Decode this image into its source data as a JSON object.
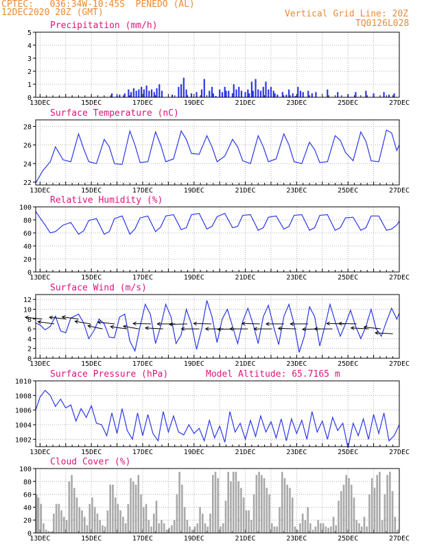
{
  "header": {
    "line1_left": "CPTEC:   036:34W-10:45S  PENEDO (AL)",
    "line2_left": "12DEC2020 20Z (GMT)",
    "line1_right": "Vertical Grid Line: 20Z",
    "line2_right": "TQ0126L028"
  },
  "colors": {
    "header": "#e98a35",
    "title": "#e0137a",
    "line": "#2a36e6",
    "bar": "#a9a9a9",
    "grid": "#999999"
  },
  "chart_data": [
    {
      "type": "bar",
      "title": "Precipitation (mm/h)",
      "ylim": [
        0,
        5
      ],
      "yticks": [
        0,
        1,
        2,
        3,
        4,
        5
      ],
      "xticks": [
        "13DEC",
        "15DEC",
        "17DEC",
        "19DEC",
        "21DEC",
        "23DEC",
        "25DEC",
        "27DEC"
      ],
      "x_range_days": [
        12.83,
        27.0
      ],
      "x": [
        15.8,
        16.0,
        16.1,
        16.3,
        16.45,
        16.55,
        16.65,
        16.75,
        16.85,
        16.95,
        17.05,
        17.15,
        17.25,
        17.35,
        17.45,
        17.55,
        17.65,
        17.75,
        18.15,
        18.4,
        18.5,
        18.6,
        18.7,
        18.9,
        19.1,
        19.3,
        19.4,
        19.6,
        19.7,
        19.75,
        19.85,
        20.0,
        20.1,
        20.2,
        20.25,
        20.35,
        20.5,
        20.55,
        20.65,
        20.75,
        20.85,
        21.0,
        21.1,
        21.15,
        21.25,
        21.3,
        21.4,
        21.5,
        21.6,
        21.7,
        21.8,
        21.9,
        22.0,
        22.1,
        22.15,
        22.25,
        22.45,
        22.6,
        22.7,
        22.85,
        22.95,
        23.05,
        23.15,
        23.25,
        23.45,
        23.6,
        23.75,
        24.2,
        24.6,
        25.0,
        25.3,
        25.7,
        26.0,
        26.4,
        26.6,
        26.8
      ],
      "values": [
        0.3,
        0.1,
        0.2,
        0.3,
        0.6,
        0.4,
        0.7,
        0.5,
        0.6,
        0.8,
        0.6,
        0.9,
        0.5,
        0.6,
        0.4,
        0.7,
        1.0,
        0.5,
        0.2,
        0.8,
        1.0,
        1.5,
        0.6,
        0.3,
        0.4,
        0.6,
        1.4,
        0.5,
        0.8,
        0.3,
        0.1,
        0.6,
        0.4,
        0.8,
        0.5,
        0.5,
        0.3,
        1.0,
        0.6,
        0.8,
        0.5,
        0.4,
        0.6,
        0.3,
        1.2,
        0.5,
        1.4,
        0.6,
        0.5,
        0.8,
        1.2,
        0.6,
        0.8,
        0.5,
        0.3,
        0.2,
        0.4,
        0.2,
        0.6,
        0.3,
        0.1,
        0.8,
        0.5,
        0.4,
        0.5,
        0.3,
        0.4,
        0.6,
        0.4,
        0.2,
        0.4,
        0.5,
        0.3,
        0.4,
        0.2,
        0.3
      ]
    },
    {
      "type": "line",
      "title": "Surface Temperature (nC)",
      "ylim": [
        21.7,
        28.7
      ],
      "yticks": [
        22,
        24,
        26,
        28
      ],
      "xticks": [
        "13DEC",
        "15DEC",
        "17DEC",
        "19DEC",
        "21DEC",
        "23DEC",
        "25DEC",
        "27DEC"
      ],
      "x_range_days": [
        12.83,
        27.0
      ],
      "period_days": 1.0,
      "x": [
        12.83,
        13.1,
        13.4,
        13.6,
        13.9,
        14.2,
        14.5,
        14.7,
        14.9,
        15.2,
        15.5,
        15.7,
        15.9,
        16.2,
        16.5,
        16.7,
        16.9,
        17.2,
        17.5,
        17.7,
        17.9,
        18.2,
        18.5,
        18.7,
        18.9,
        19.2,
        19.5,
        19.7,
        19.9,
        20.2,
        20.5,
        20.7,
        20.9,
        21.2,
        21.5,
        21.7,
        21.9,
        22.2,
        22.5,
        22.7,
        22.9,
        23.2,
        23.5,
        23.7,
        23.9,
        24.2,
        24.5,
        24.7,
        24.9,
        25.2,
        25.5,
        25.7,
        25.9,
        26.2,
        26.5,
        26.7,
        26.9,
        27.0
      ],
      "values": [
        21.9,
        23.2,
        24.2,
        25.8,
        24.4,
        24.2,
        27.2,
        25.6,
        24.2,
        24.0,
        26.6,
        25.8,
        24.0,
        23.9,
        27.5,
        26.0,
        24.1,
        24.2,
        27.4,
        26.0,
        24.2,
        24.5,
        27.5,
        26.6,
        25.1,
        25.0,
        27.0,
        25.8,
        24.2,
        24.8,
        26.6,
        25.8,
        24.3,
        24.0,
        27.0,
        25.8,
        24.2,
        24.5,
        27.2,
        26.0,
        24.2,
        24.0,
        26.3,
        25.5,
        24.1,
        24.2,
        27.0,
        26.5,
        25.2,
        24.3,
        27.4,
        26.4,
        24.3,
        24.2,
        27.6,
        27.3,
        25.4,
        26.0
      ]
    },
    {
      "type": "line",
      "title": "Relative Humidity (%)",
      "ylim": [
        0,
        100
      ],
      "yticks": [
        0,
        20,
        40,
        60,
        80,
        100
      ],
      "xticks": [
        "13DEC",
        "15DEC",
        "17DEC",
        "19DEC",
        "21DEC",
        "23DEC",
        "25DEC",
        "27DEC"
      ],
      "x_range_days": [
        12.83,
        27.0
      ],
      "x": [
        12.83,
        13.0,
        13.2,
        13.4,
        13.6,
        13.9,
        14.2,
        14.5,
        14.7,
        14.9,
        15.2,
        15.5,
        15.7,
        15.9,
        16.2,
        16.5,
        16.7,
        16.9,
        17.2,
        17.5,
        17.7,
        17.9,
        18.2,
        18.5,
        18.7,
        18.9,
        19.2,
        19.5,
        19.7,
        19.9,
        20.2,
        20.5,
        20.7,
        20.9,
        21.2,
        21.5,
        21.7,
        21.9,
        22.2,
        22.5,
        22.7,
        22.9,
        23.2,
        23.5,
        23.7,
        23.9,
        24.2,
        24.5,
        24.7,
        24.9,
        25.2,
        25.5,
        25.7,
        25.9,
        26.2,
        26.5,
        26.7,
        26.9,
        27.0
      ],
      "values": [
        93,
        83,
        72,
        60,
        62,
        72,
        76,
        58,
        63,
        79,
        82,
        58,
        62,
        82,
        86,
        58,
        66,
        83,
        86,
        62,
        69,
        86,
        88,
        65,
        68,
        88,
        90,
        66,
        70,
        85,
        90,
        68,
        70,
        87,
        88,
        64,
        68,
        84,
        86,
        66,
        70,
        87,
        88,
        64,
        68,
        87,
        88,
        64,
        68,
        83,
        84,
        64,
        68,
        86,
        86,
        64,
        66,
        72,
        78
      ]
    },
    {
      "type": "line",
      "title": "Surface Wind (m/s)",
      "ylim": [
        0,
        13
      ],
      "yticks": [
        0,
        2,
        4,
        6,
        8,
        10,
        12
      ],
      "xticks": [
        "13DEC",
        "15DEC",
        "17DEC",
        "19DEC",
        "21DEC",
        "23DEC",
        "25DEC",
        "27DEC"
      ],
      "x_range_days": [
        12.83,
        27.0
      ],
      "x": [
        12.83,
        13.0,
        13.2,
        13.4,
        13.6,
        13.8,
        14.0,
        14.2,
        14.5,
        14.7,
        14.9,
        15.1,
        15.3,
        15.5,
        15.7,
        15.9,
        16.1,
        16.3,
        16.5,
        16.7,
        16.9,
        17.1,
        17.3,
        17.5,
        17.7,
        17.9,
        18.1,
        18.3,
        18.5,
        18.7,
        18.9,
        19.1,
        19.3,
        19.5,
        19.7,
        19.9,
        20.1,
        20.3,
        20.5,
        20.7,
        20.9,
        21.1,
        21.3,
        21.5,
        21.7,
        21.9,
        22.1,
        22.3,
        22.5,
        22.7,
        22.9,
        23.1,
        23.3,
        23.5,
        23.7,
        23.9,
        24.1,
        24.3,
        24.5,
        24.7,
        24.9,
        25.1,
        25.3,
        25.5,
        25.7,
        25.9,
        26.1,
        26.3,
        26.5,
        26.7,
        26.9,
        27.0
      ],
      "values": [
        7.2,
        6.8,
        5.8,
        6.5,
        8.6,
        5.6,
        5.2,
        8.2,
        9.0,
        7.2,
        4.0,
        5.6,
        8.0,
        7.0,
        4.3,
        4.2,
        8.4,
        9.0,
        3.5,
        1.5,
        6.5,
        11.0,
        9.0,
        3.0,
        6.5,
        11.0,
        8.5,
        3.0,
        4.8,
        10.0,
        7.0,
        1.8,
        6.0,
        11.8,
        8.5,
        3.2,
        8.0,
        10.0,
        6.5,
        3.0,
        7.5,
        10.2,
        7.0,
        3.0,
        8.5,
        10.8,
        6.5,
        2.8,
        8.5,
        11.0,
        7.0,
        1.2,
        4.5,
        10.5,
        8.5,
        2.5,
        6.5,
        11.0,
        7.5,
        4.5,
        7.0,
        9.8,
        6.5,
        4.0,
        6.5,
        10.0,
        6.0,
        4.5,
        7.5,
        10.2,
        8.0,
        9.2
      ],
      "wind_barbs_speed": [
        8,
        7,
        8,
        8,
        7,
        6,
        7,
        6,
        6,
        7,
        6,
        7,
        7,
        6,
        7,
        6,
        6,
        6,
        7,
        6,
        7,
        6,
        7,
        6,
        6,
        7,
        7,
        6,
        6,
        5
      ],
      "wind_barbs_dir_deg": [
        110,
        115,
        110,
        115,
        120,
        125,
        110,
        115,
        120,
        95,
        100,
        90,
        85,
        90,
        95,
        90,
        85,
        90,
        95,
        90,
        90,
        95,
        90,
        85,
        90,
        95,
        95,
        100,
        110,
        100
      ]
    },
    {
      "type": "line",
      "title": "Surface Pressure (hPa)",
      "annotation": "Model Altitude: 65.7165 m",
      "ylim": [
        1001,
        1010
      ],
      "yticks": [
        1002,
        1004,
        1006,
        1008,
        1010
      ],
      "xticks": [
        "13DEC",
        "15DEC",
        "17DEC",
        "19DEC",
        "21DEC",
        "23DEC",
        "25DEC",
        "27DEC"
      ],
      "x_range_days": [
        12.83,
        27.0
      ],
      "x": [
        12.83,
        13.0,
        13.2,
        13.4,
        13.6,
        13.8,
        14.0,
        14.2,
        14.4,
        14.6,
        14.8,
        15.0,
        15.2,
        15.4,
        15.6,
        15.8,
        16.0,
        16.2,
        16.4,
        16.6,
        16.8,
        17.0,
        17.2,
        17.4,
        17.6,
        17.8,
        18.0,
        18.2,
        18.4,
        18.6,
        18.8,
        19.0,
        19.2,
        19.4,
        19.6,
        19.8,
        20.0,
        20.2,
        20.4,
        20.6,
        20.8,
        21.0,
        21.2,
        21.4,
        21.6,
        21.8,
        22.0,
        22.2,
        22.4,
        22.6,
        22.8,
        23.0,
        23.2,
        23.4,
        23.6,
        23.8,
        24.0,
        24.2,
        24.4,
        24.6,
        24.8,
        25.0,
        25.2,
        25.4,
        25.6,
        25.8,
        26.0,
        26.2,
        26.4,
        26.6,
        26.8,
        27.0
      ],
      "values": [
        1006.0,
        1007.8,
        1008.7,
        1008.0,
        1006.5,
        1007.5,
        1006.3,
        1006.7,
        1004.5,
        1006.2,
        1005.0,
        1006.6,
        1004.2,
        1004.0,
        1002.5,
        1005.6,
        1002.8,
        1006.2,
        1003.2,
        1002.0,
        1005.6,
        1002.5,
        1005.4,
        1002.8,
        1001.8,
        1005.8,
        1003.0,
        1005.2,
        1003.0,
        1002.6,
        1004.0,
        1002.8,
        1003.5,
        1001.8,
        1004.6,
        1002.2,
        1003.8,
        1001.6,
        1005.8,
        1003.0,
        1004.2,
        1002.0,
        1004.6,
        1002.4,
        1005.2,
        1003.0,
        1004.4,
        1002.2,
        1004.8,
        1001.8,
        1004.8,
        1002.8,
        1004.6,
        1002.0,
        1005.8,
        1003.0,
        1004.5,
        1002.0,
        1005.0,
        1003.2,
        1004.2,
        1000.8,
        1004.2,
        1002.5,
        1004.8,
        1002.0,
        1005.4,
        1002.8,
        1005.6,
        1001.8,
        1002.5,
        1004.0
      ]
    },
    {
      "type": "bar",
      "title": "Cloud Cover (%)",
      "ylim": [
        0,
        100
      ],
      "yticks": [
        0,
        20,
        40,
        60,
        80,
        100
      ],
      "xticks": [
        "13DEC",
        "15DEC",
        "17DEC",
        "19DEC",
        "21DEC",
        "23DEC",
        "25DEC",
        "27DEC"
      ],
      "x_range_days": [
        12.83,
        27.0
      ],
      "x": [
        12.83,
        12.9,
        13.0,
        13.1,
        13.2,
        13.3,
        13.4,
        13.5,
        13.6,
        13.7,
        13.8,
        13.9,
        14.0,
        14.1,
        14.2,
        14.3,
        14.4,
        14.5,
        14.6,
        14.7,
        14.8,
        14.9,
        15.0,
        15.1,
        15.2,
        15.3,
        15.4,
        15.5,
        15.6,
        15.7,
        15.8,
        15.9,
        16.0,
        16.1,
        16.2,
        16.3,
        16.4,
        16.5,
        16.6,
        16.7,
        16.8,
        16.9,
        17.0,
        17.1,
        17.2,
        17.3,
        17.4,
        17.5,
        17.6,
        17.7,
        17.8,
        17.9,
        18.0,
        18.1,
        18.2,
        18.3,
        18.4,
        18.5,
        18.6,
        18.7,
        18.8,
        18.9,
        19.0,
        19.1,
        19.2,
        19.3,
        19.4,
        19.5,
        19.6,
        19.7,
        19.8,
        19.9,
        20.0,
        20.1,
        20.2,
        20.3,
        20.4,
        20.5,
        20.6,
        20.7,
        20.8,
        20.9,
        21.0,
        21.1,
        21.2,
        21.3,
        21.4,
        21.5,
        21.6,
        21.7,
        21.8,
        21.9,
        22.0,
        22.1,
        22.2,
        22.3,
        22.4,
        22.5,
        22.6,
        22.7,
        22.8,
        22.9,
        23.0,
        23.1,
        23.2,
        23.3,
        23.4,
        23.5,
        23.6,
        23.7,
        23.8,
        23.9,
        24.0,
        24.1,
        24.2,
        24.3,
        24.4,
        24.5,
        24.6,
        24.7,
        24.8,
        24.9,
        25.0,
        25.1,
        25.2,
        25.3,
        25.4,
        25.5,
        25.6,
        25.7,
        25.8,
        25.9,
        26.0,
        26.1,
        26.2,
        26.3,
        26.4,
        26.5,
        26.6,
        26.7,
        26.8,
        26.9
      ],
      "values": [
        60,
        55,
        45,
        15,
        5,
        3,
        2,
        30,
        45,
        45,
        35,
        25,
        20,
        80,
        90,
        70,
        55,
        40,
        35,
        25,
        12,
        45,
        55,
        40,
        30,
        20,
        12,
        10,
        35,
        75,
        75,
        55,
        45,
        35,
        25,
        15,
        45,
        85,
        80,
        75,
        90,
        60,
        40,
        45,
        20,
        10,
        30,
        50,
        15,
        20,
        15,
        5,
        8,
        12,
        20,
        60,
        95,
        75,
        40,
        20,
        10,
        5,
        10,
        15,
        40,
        30,
        15,
        10,
        30,
        90,
        95,
        85,
        10,
        15,
        50,
        95,
        80,
        95,
        95,
        80,
        70,
        55,
        35,
        35,
        20,
        60,
        90,
        95,
        90,
        85,
        70,
        60,
        15,
        10,
        10,
        40,
        95,
        85,
        75,
        70,
        55,
        10,
        5,
        15,
        30,
        20,
        40,
        15,
        5,
        10,
        20,
        15,
        15,
        10,
        8,
        10,
        25,
        12,
        50,
        65,
        75,
        90,
        85,
        75,
        55,
        20,
        15,
        10,
        25,
        10,
        60,
        85,
        70,
        90,
        95,
        20,
        60,
        90,
        95,
        65,
        25,
        5
      ]
    }
  ]
}
